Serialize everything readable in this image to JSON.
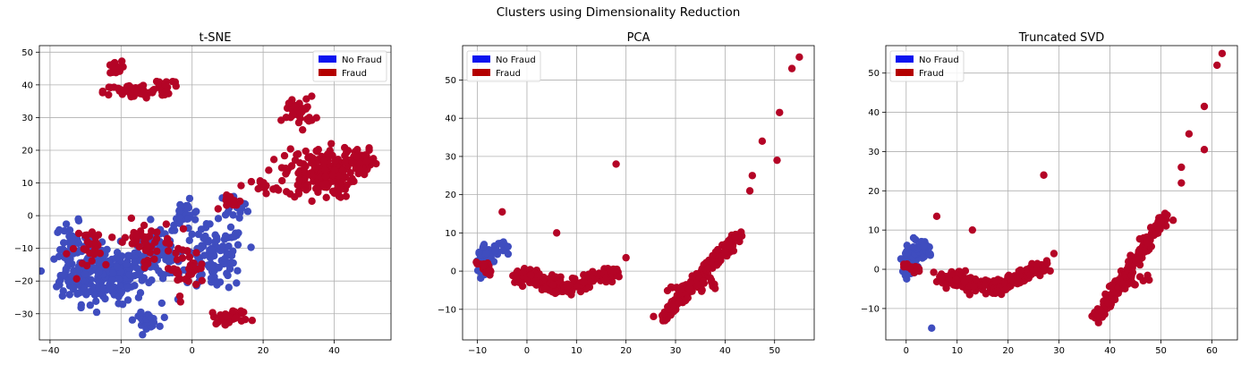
{
  "figure": {
    "title": "Clusters using Dimensionality Reduction"
  },
  "colors": {
    "no_fraud": "#3f4dbf",
    "fraud": "#b40426",
    "legend_no_fraud": "#0a14f0",
    "legend_fraud": "#b40000",
    "grid": "#b0b0b0"
  },
  "chart_data": [
    {
      "type": "scatter",
      "title": "t-SNE",
      "xlim": [
        -43,
        56
      ],
      "ylim": [
        -38,
        52
      ],
      "xticks": [
        -40,
        -20,
        0,
        20,
        40
      ],
      "yticks": [
        -30,
        -20,
        -10,
        0,
        10,
        20,
        30,
        40,
        50
      ],
      "grid": true,
      "legend": {
        "position": "top-right",
        "entries": [
          "No Fraud",
          "Fraud"
        ]
      },
      "series": [
        {
          "name": "No Fraud",
          "color": "#3f4dbf",
          "clusters": [
            {
              "cx": -25,
              "cy": -18,
              "rx": 11,
              "ry": 8,
              "n": 260
            },
            {
              "cx": -34,
              "cy": -10,
              "rx": 4,
              "ry": 7,
              "n": 40
            },
            {
              "cx": -10,
              "cy": -12,
              "rx": 7,
              "ry": 6,
              "n": 80
            },
            {
              "cx": 6,
              "cy": -13,
              "rx": 8,
              "ry": 9,
              "n": 110
            },
            {
              "cx": -2,
              "cy": 0,
              "rx": 4,
              "ry": 4,
              "n": 25
            },
            {
              "cx": -13,
              "cy": -32,
              "rx": 3,
              "ry": 2,
              "n": 30
            },
            {
              "cx": 12,
              "cy": 3,
              "rx": 4,
              "ry": 3,
              "n": 20
            }
          ]
        },
        {
          "name": "Fraud",
          "color": "#b40426",
          "clusters": [
            {
              "cx": -22,
              "cy": 45,
              "rx": 2,
              "ry": 2,
              "n": 20
            },
            {
              "cx": -16,
              "cy": 38,
              "rx": 8,
              "ry": 2,
              "n": 60
            },
            {
              "cx": -8,
              "cy": 40,
              "rx": 4,
              "ry": 2,
              "n": 20
            },
            {
              "cx": 36,
              "cy": 13,
              "rx": 9,
              "ry": 7,
              "n": 180
            },
            {
              "cx": 48,
              "cy": 16,
              "rx": 4,
              "ry": 4,
              "n": 40
            },
            {
              "cx": 30,
              "cy": 32,
              "rx": 4,
              "ry": 4,
              "n": 40
            },
            {
              "cx": 11,
              "cy": -31,
              "rx": 5,
              "ry": 2,
              "n": 30
            },
            {
              "cx": -14,
              "cy": -8,
              "rx": 8,
              "ry": 6,
              "n": 45
            },
            {
              "cx": -2,
              "cy": -16,
              "rx": 5,
              "ry": 6,
              "n": 35
            },
            {
              "cx": -28,
              "cy": -10,
              "rx": 6,
              "ry": 6,
              "n": 25
            },
            {
              "cx": 12,
              "cy": 4,
              "rx": 3,
              "ry": 2,
              "n": 15
            },
            {
              "cx": 20,
              "cy": 9,
              "rx": 3,
              "ry": 2,
              "n": 15
            }
          ]
        }
      ]
    },
    {
      "type": "scatter",
      "title": "PCA",
      "xlim": [
        -13,
        58
      ],
      "ylim": [
        -18,
        59
      ],
      "xticks": [
        -10,
        0,
        10,
        20,
        30,
        40,
        50
      ],
      "yticks": [
        -10,
        0,
        10,
        20,
        30,
        40,
        50
      ],
      "grid": true,
      "legend": {
        "position": "top-left",
        "entries": [
          "No Fraud",
          "Fraud"
        ]
      },
      "series": [
        {
          "name": "No Fraud",
          "color": "#3f4dbf",
          "clusters": [
            {
              "cx": -8.5,
              "cy": 3,
              "rx": 1.2,
              "ry": 3,
              "n": 80
            },
            {
              "cx": -6,
              "cy": 6,
              "rx": 2,
              "ry": 2,
              "n": 20
            }
          ]
        },
        {
          "name": "Fraud",
          "color": "#b40426",
          "lines": [
            {
              "x0": -2,
              "y0": -1,
              "x1": 8,
              "y1": -4.5,
              "spread": 1.8,
              "n": 160
            },
            {
              "x0": 8,
              "y0": -4.5,
              "x1": 18,
              "y1": 0,
              "spread": 1.6,
              "n": 110
            },
            {
              "x0": 27,
              "y0": -13,
              "x1": 43,
              "y1": 10,
              "spread": 1.2,
              "n": 180
            },
            {
              "x0": 29,
              "y0": -5,
              "x1": 38,
              "y1": -3,
              "spread": 1.5,
              "n": 25
            },
            {
              "x0": -9,
              "y0": 2,
              "x1": -7,
              "y1": -1,
              "spread": 1.0,
              "n": 25
            }
          ],
          "points": [
            [
              -5,
              15.5
            ],
            [
              18,
              28
            ],
            [
              20,
              3.5
            ],
            [
              6,
              10
            ],
            [
              45,
              21
            ],
            [
              45.5,
              25
            ],
            [
              47.5,
              34
            ],
            [
              50.5,
              29
            ],
            [
              51,
              41.5
            ],
            [
              53.5,
              53
            ],
            [
              55,
              56
            ]
          ]
        }
      ]
    },
    {
      "type": "scatter",
      "title": "Truncated SVD",
      "xlim": [
        -4,
        65
      ],
      "ylim": [
        -18,
        57
      ],
      "xticks": [
        0,
        10,
        20,
        30,
        40,
        50,
        60
      ],
      "yticks": [
        -10,
        0,
        10,
        20,
        30,
        40,
        50
      ],
      "grid": true,
      "legend": {
        "position": "top-left",
        "entries": [
          "No Fraud",
          "Fraud"
        ]
      },
      "series": [
        {
          "name": "No Fraud",
          "color": "#3f4dbf",
          "clusters": [
            {
              "cx": 0.5,
              "cy": 2,
              "rx": 1.2,
              "ry": 3,
              "n": 80
            },
            {
              "cx": 3,
              "cy": 5,
              "rx": 2,
              "ry": 2.5,
              "n": 25
            }
          ],
          "points": [
            [
              5,
              -15
            ]
          ]
        },
        {
          "name": "Fraud",
          "color": "#b40426",
          "lines": [
            {
              "x0": 7,
              "y0": -2,
              "x1": 18,
              "y1": -5,
              "spread": 1.8,
              "n": 160
            },
            {
              "x0": 18,
              "y0": -5,
              "x1": 27,
              "y1": 1,
              "spread": 1.6,
              "n": 110
            },
            {
              "x0": 37,
              "y0": -13,
              "x1": 51,
              "y1": 14,
              "spread": 1.2,
              "n": 180
            },
            {
              "x0": 41,
              "y0": -5,
              "x1": 47,
              "y1": -2,
              "spread": 1.5,
              "n": 20
            },
            {
              "x0": 0,
              "y0": 1,
              "x1": 3,
              "y1": -1,
              "spread": 1.0,
              "n": 20
            }
          ],
          "points": [
            [
              27,
              24
            ],
            [
              29,
              4
            ],
            [
              13,
              10
            ],
            [
              6,
              13.5
            ],
            [
              54,
              22
            ],
            [
              54,
              26
            ],
            [
              55.5,
              34.5
            ],
            [
              58.5,
              30.5
            ],
            [
              58.5,
              41.5
            ],
            [
              61,
              52
            ],
            [
              62,
              55
            ]
          ]
        }
      ]
    }
  ]
}
